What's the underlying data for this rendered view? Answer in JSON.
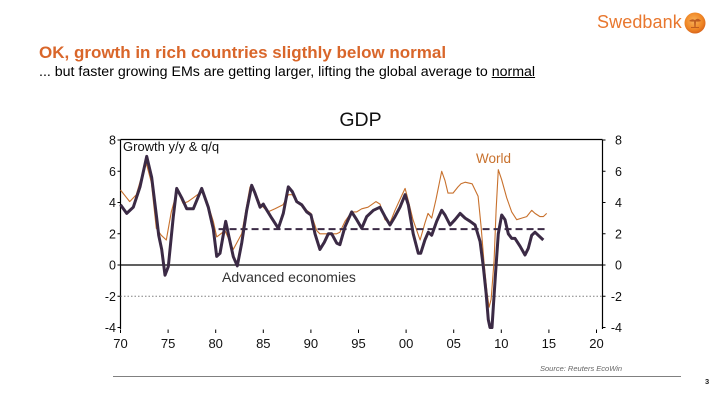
{
  "brand": {
    "name": "Swedbank",
    "logo_icon": "oak-tree-emblem",
    "color": "#e8772e"
  },
  "slide": {
    "headline": "OK, growth in rich countries sligthly below normal",
    "subtitle_prefix": "... but faster growing EMs are getting larger, lifting the global average to ",
    "subtitle_emphasis": "normal",
    "page_number": "3",
    "accent_color": "#d9662a"
  },
  "chart_data": {
    "type": "line",
    "title": "GDP",
    "xlabel": "",
    "ylabel": "",
    "xlim": [
      1970,
      2020
    ],
    "ylim": [
      -4,
      8
    ],
    "grid": false,
    "legend": "inline labels",
    "x_ticks": [
      1970,
      1975,
      1980,
      1985,
      1990,
      1995,
      2000,
      2005,
      2010,
      2015,
      2020
    ],
    "x_tick_labels": [
      "70",
      "75",
      "80",
      "85",
      "90",
      "95",
      "00",
      "05",
      "10",
      "15",
      "20"
    ],
    "y_ticks": [
      8,
      6,
      4,
      2,
      0,
      -2,
      -4
    ],
    "y_tick_labels": [
      "8",
      "6",
      "4",
      "2",
      "0",
      "-2",
      "-4"
    ],
    "y_axis_sides": [
      "left",
      "right"
    ],
    "annotations": [
      {
        "id": "unit",
        "text": "Growth y/y & q/q"
      },
      {
        "id": "world",
        "text": "World"
      },
      {
        "id": "advanced",
        "text": "Advanced economies"
      }
    ],
    "source": "Source: Reuters EcoWin",
    "reference_lines": [
      {
        "value": 2.3,
        "from": 1980.3,
        "to": 2014.9,
        "style": "dashed",
        "color": "#3b2a45"
      },
      {
        "value": 0,
        "style": "solid",
        "color": "#000000"
      },
      {
        "value": -2,
        "style": "dotted",
        "color": "#808080"
      }
    ],
    "series": [
      {
        "name": "World",
        "color": "#c8712d",
        "weight": "thin",
        "points": [
          [
            1970.0,
            4.8
          ],
          [
            1970.97,
            4.06
          ],
          [
            1971.66,
            4.5
          ],
          [
            1972.18,
            5.6
          ],
          [
            1972.71,
            6.5
          ],
          [
            1973.24,
            5.3
          ],
          [
            1973.76,
            2.35
          ],
          [
            1974.29,
            1.9
          ],
          [
            1974.81,
            1.6
          ],
          [
            1975.34,
            3.4
          ],
          [
            1975.97,
            4.8
          ],
          [
            1976.57,
            3.95
          ],
          [
            1977.09,
            4.06
          ],
          [
            1977.65,
            4.3
          ],
          [
            1978.53,
            4.7
          ],
          [
            1979.22,
            3.8
          ],
          [
            1979.75,
            2.8
          ],
          [
            1980.1,
            1.8
          ],
          [
            1980.98,
            2.2
          ],
          [
            1981.85,
            1.0
          ],
          [
            1982.73,
            2.0
          ],
          [
            1983.6,
            5.0
          ],
          [
            1984.13,
            4.7
          ],
          [
            1984.66,
            3.9
          ],
          [
            1985.49,
            3.4
          ],
          [
            1986.23,
            3.6
          ],
          [
            1987.07,
            3.85
          ],
          [
            1987.63,
            4.5
          ],
          [
            1988.05,
            4.5
          ],
          [
            1988.51,
            4.0
          ],
          [
            1989.03,
            3.8
          ],
          [
            1989.56,
            3.5
          ],
          [
            1990.01,
            3.3
          ],
          [
            1990.61,
            2.2
          ],
          [
            1990.95,
            2.0
          ],
          [
            1991.58,
            2.0
          ],
          [
            1992.18,
            2.0
          ],
          [
            1992.71,
            2.0
          ],
          [
            1993.05,
            2.1
          ],
          [
            1993.58,
            2.8
          ],
          [
            1994.29,
            3.4
          ],
          [
            1994.81,
            3.4
          ],
          [
            1995.34,
            3.6
          ],
          [
            1996.0,
            3.7
          ],
          [
            1996.84,
            4.06
          ],
          [
            1997.26,
            3.9
          ],
          [
            1997.78,
            2.9
          ],
          [
            1998.31,
            2.7
          ],
          [
            1998.83,
            3.5
          ],
          [
            1999.36,
            4.2
          ],
          [
            1999.89,
            4.9
          ],
          [
            2000.2,
            4.2
          ],
          [
            2000.73,
            2.9
          ],
          [
            2001.47,
            1.6
          ],
          [
            2001.99,
            2.7
          ],
          [
            2002.3,
            3.3
          ],
          [
            2002.69,
            3.0
          ],
          [
            2003.14,
            4.2
          ],
          [
            2003.74,
            6.0
          ],
          [
            2004.09,
            5.4
          ],
          [
            2004.4,
            4.6
          ],
          [
            2004.93,
            4.6
          ],
          [
            2005.45,
            5.0
          ],
          [
            2005.77,
            5.2
          ],
          [
            2006.2,
            5.3
          ],
          [
            2006.93,
            5.2
          ],
          [
            2007.56,
            4.4
          ],
          [
            2007.88,
            2.45
          ],
          [
            2008.19,
            0.1
          ],
          [
            2008.51,
            -1.8
          ],
          [
            2008.72,
            -2.7
          ],
          [
            2008.93,
            -2.2
          ],
          [
            2009.24,
            0.3
          ],
          [
            2009.45,
            3.5
          ],
          [
            2009.69,
            6.1
          ],
          [
            2010.04,
            5.45
          ],
          [
            2010.57,
            4.3
          ],
          [
            2011.09,
            3.4
          ],
          [
            2011.62,
            2.9
          ],
          [
            2012.14,
            3.0
          ],
          [
            2012.67,
            3.1
          ],
          [
            2013.19,
            3.5
          ],
          [
            2013.54,
            3.3
          ],
          [
            2014.06,
            3.1
          ],
          [
            2014.41,
            3.1
          ],
          [
            2014.77,
            3.3
          ]
        ]
      },
      {
        "name": "Advanced economies",
        "color": "#3b2a45",
        "weight": "thick",
        "points": [
          [
            1970.0,
            3.85
          ],
          [
            1970.65,
            3.3
          ],
          [
            1971.34,
            3.7
          ],
          [
            1972.05,
            5.0
          ],
          [
            1972.75,
            6.95
          ],
          [
            1973.28,
            5.6
          ],
          [
            1973.8,
            3.0
          ],
          [
            1974.01,
            1.9
          ],
          [
            1974.33,
            1.0
          ],
          [
            1974.67,
            -0.65
          ],
          [
            1975.02,
            -0.1
          ],
          [
            1975.55,
            3.1
          ],
          [
            1975.9,
            4.9
          ],
          [
            1976.43,
            4.3
          ],
          [
            1976.95,
            3.6
          ],
          [
            1977.65,
            3.6
          ],
          [
            1978.53,
            4.9
          ],
          [
            1979.22,
            3.7
          ],
          [
            1979.75,
            2.3
          ],
          [
            1980.1,
            0.55
          ],
          [
            1980.45,
            0.75
          ],
          [
            1981.05,
            2.8
          ],
          [
            1981.4,
            1.8
          ],
          [
            1981.85,
            0.53
          ],
          [
            1982.27,
            -0.06
          ],
          [
            1982.73,
            1.4
          ],
          [
            1983.26,
            3.5
          ],
          [
            1983.78,
            5.1
          ],
          [
            1984.13,
            4.6
          ],
          [
            1984.66,
            3.7
          ],
          [
            1985.0,
            3.9
          ],
          [
            1985.18,
            3.7
          ],
          [
            1985.88,
            3.0
          ],
          [
            1986.58,
            2.35
          ],
          [
            1987.1,
            3.3
          ],
          [
            1987.63,
            5.0
          ],
          [
            1988.05,
            4.7
          ],
          [
            1988.51,
            4.06
          ],
          [
            1989.03,
            3.85
          ],
          [
            1989.56,
            3.4
          ],
          [
            1990.01,
            3.2
          ],
          [
            1990.43,
            2.0
          ],
          [
            1990.95,
            1.0
          ],
          [
            1991.41,
            1.45
          ],
          [
            1991.83,
            2.0
          ],
          [
            1992.18,
            2.0
          ],
          [
            1992.71,
            1.4
          ],
          [
            1993.05,
            1.3
          ],
          [
            1993.58,
            2.45
          ],
          [
            1994.29,
            3.4
          ],
          [
            1994.81,
            2.9
          ],
          [
            1995.34,
            2.35
          ],
          [
            1995.86,
            3.1
          ],
          [
            1996.56,
            3.5
          ],
          [
            1997.26,
            3.7
          ],
          [
            1997.78,
            3.1
          ],
          [
            1998.31,
            2.56
          ],
          [
            1998.83,
            3.1
          ],
          [
            1999.36,
            3.7
          ],
          [
            1999.89,
            4.5
          ],
          [
            2000.23,
            3.85
          ],
          [
            2000.75,
            2.0
          ],
          [
            2001.28,
            0.75
          ],
          [
            2001.53,
            0.75
          ],
          [
            2001.98,
            1.6
          ],
          [
            2002.33,
            2.1
          ],
          [
            2002.69,
            1.9
          ],
          [
            2003.21,
            2.8
          ],
          [
            2003.74,
            3.5
          ],
          [
            2004.09,
            3.2
          ],
          [
            2004.62,
            2.56
          ],
          [
            2005.14,
            2.9
          ],
          [
            2005.67,
            3.3
          ],
          [
            2006.2,
            3.0
          ],
          [
            2006.72,
            2.8
          ],
          [
            2007.25,
            2.56
          ],
          [
            2007.77,
            1.5
          ],
          [
            2008.11,
            -0.1
          ],
          [
            2008.4,
            -1.8
          ],
          [
            2008.63,
            -3.5
          ],
          [
            2008.81,
            -4.0
          ],
          [
            2009.02,
            -4.0
          ],
          [
            2009.16,
            -2.7
          ],
          [
            2009.44,
            -0.1
          ],
          [
            2009.69,
            2.0
          ],
          [
            2010.04,
            3.2
          ],
          [
            2010.39,
            2.9
          ],
          [
            2010.74,
            2.0
          ],
          [
            2011.09,
            1.7
          ],
          [
            2011.44,
            1.7
          ],
          [
            2011.97,
            1.2
          ],
          [
            2012.49,
            0.64
          ],
          [
            2012.84,
            1.07
          ],
          [
            2013.19,
            1.9
          ],
          [
            2013.54,
            2.1
          ],
          [
            2013.89,
            1.9
          ],
          [
            2014.41,
            1.6
          ]
        ]
      }
    ]
  }
}
